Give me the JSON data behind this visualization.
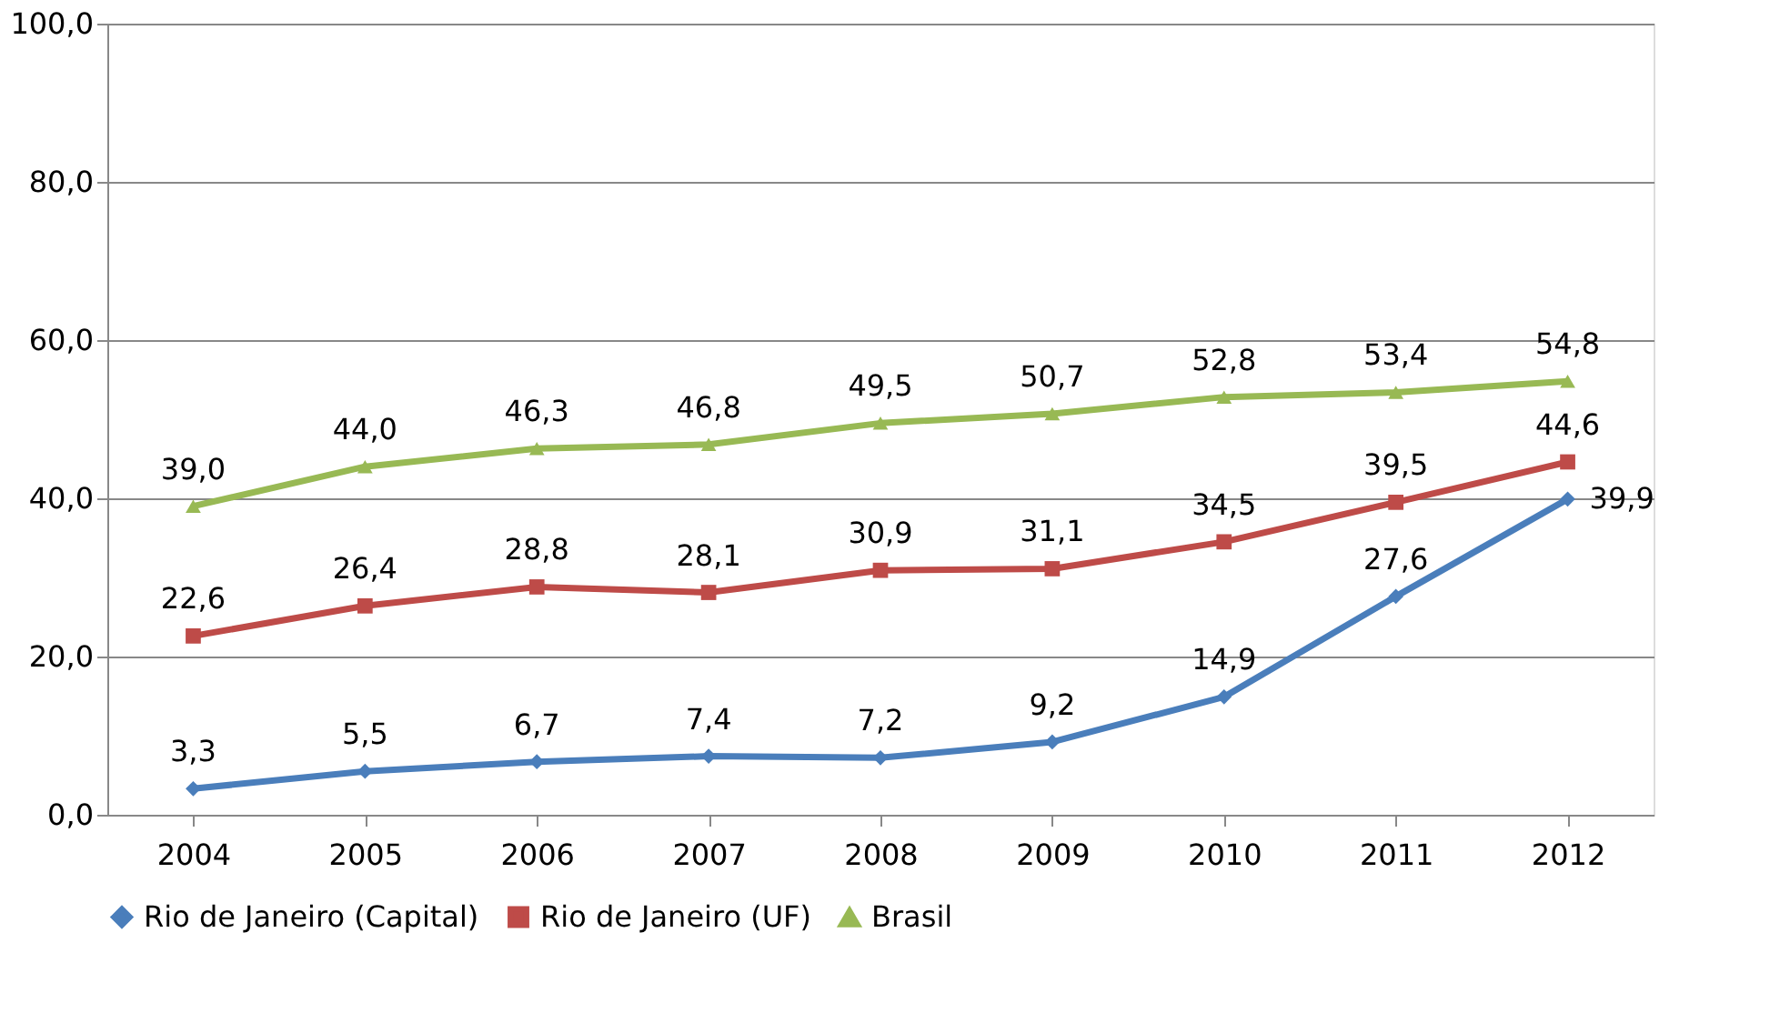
{
  "chart_data": {
    "type": "line",
    "categories": [
      "2004",
      "2005",
      "2006",
      "2007",
      "2008",
      "2009",
      "2010",
      "2011",
      "2012"
    ],
    "series": [
      {
        "name": "Rio de Janeiro (Capital)",
        "color": "#4a7ebb",
        "marker": "diamond",
        "values": [
          3.3,
          5.5,
          6.7,
          7.4,
          7.2,
          9.2,
          14.9,
          27.6,
          39.9
        ],
        "value_labels": [
          "3,3",
          "5,5",
          "6,7",
          "7,4",
          "7,2",
          "9,2",
          "14,9",
          "27,6",
          "39,9"
        ]
      },
      {
        "name": "Rio de Janeiro (UF)",
        "color": "#be4b48",
        "marker": "square",
        "values": [
          22.6,
          26.4,
          28.8,
          28.1,
          30.9,
          31.1,
          34.5,
          39.5,
          44.6
        ],
        "value_labels": [
          "22,6",
          "26,4",
          "28,8",
          "28,1",
          "30,9",
          "31,1",
          "34,5",
          "39,5",
          "44,6"
        ]
      },
      {
        "name": "Brasil",
        "color": "#98b954",
        "marker": "triangle",
        "values": [
          39.0,
          44.0,
          46.3,
          46.8,
          49.5,
          50.7,
          52.8,
          53.4,
          54.8
        ],
        "value_labels": [
          "39,0",
          "44,0",
          "46,3",
          "46,8",
          "49,5",
          "50,7",
          "52,8",
          "53,4",
          "54,8"
        ]
      }
    ],
    "ylim": [
      0,
      100
    ],
    "yticks": [
      {
        "value": 0,
        "label": "0,0"
      },
      {
        "value": 20,
        "label": "20,0"
      },
      {
        "value": 40,
        "label": "40,0"
      },
      {
        "value": 60,
        "label": "60,0"
      },
      {
        "value": 80,
        "label": "80,0"
      },
      {
        "value": 100,
        "label": "100,0"
      }
    ],
    "grid": "y",
    "legend": "bottom"
  }
}
